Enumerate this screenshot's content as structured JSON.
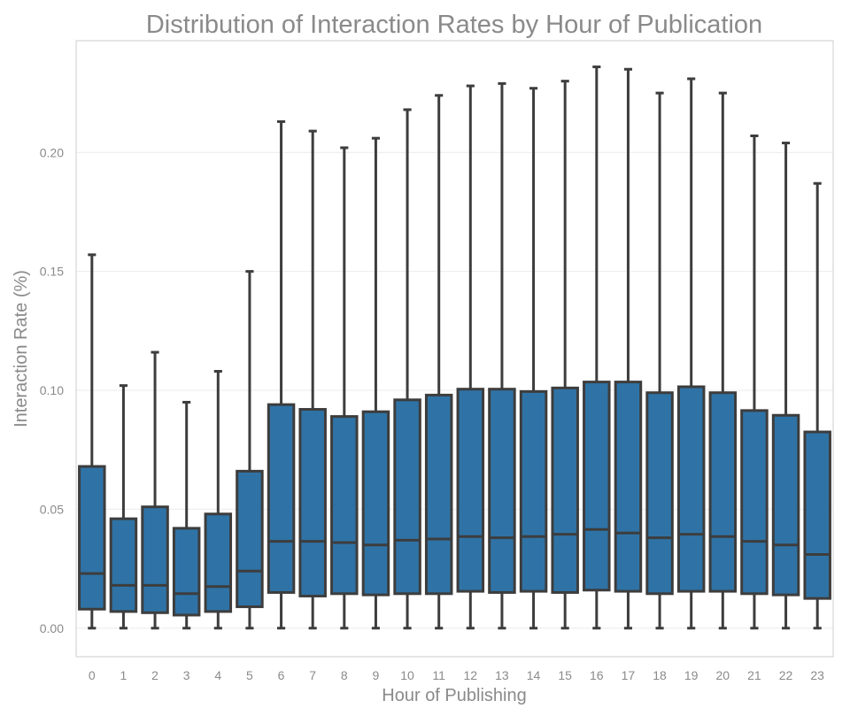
{
  "chart_data": {
    "type": "box",
    "title": "Distribution of Interaction Rates by Hour of Publication",
    "xlabel": "Hour of Publishing",
    "ylabel": "Interaction Rate (%)",
    "categories": [
      "0",
      "1",
      "2",
      "3",
      "4",
      "5",
      "6",
      "7",
      "8",
      "9",
      "10",
      "11",
      "12",
      "13",
      "14",
      "15",
      "16",
      "17",
      "18",
      "19",
      "20",
      "21",
      "22",
      "23"
    ],
    "ylim": [
      -0.012,
      0.247
    ],
    "yticks": [
      0.0,
      0.05,
      0.1,
      0.15,
      0.2
    ],
    "ytick_labels": [
      "0.00",
      "0.05",
      "0.10",
      "0.15",
      "0.20"
    ],
    "grid": true,
    "box_color": "#2f73a6",
    "line_color": "#3d3d3d",
    "boxes": [
      {
        "min": 0,
        "q1": 0.008,
        "median": 0.023,
        "q3": 0.068,
        "max": 0.157
      },
      {
        "min": 0,
        "q1": 0.007,
        "median": 0.018,
        "q3": 0.046,
        "max": 0.102
      },
      {
        "min": 0,
        "q1": 0.0065,
        "median": 0.018,
        "q3": 0.051,
        "max": 0.116
      },
      {
        "min": 0,
        "q1": 0.0055,
        "median": 0.0145,
        "q3": 0.042,
        "max": 0.095
      },
      {
        "min": 0,
        "q1": 0.007,
        "median": 0.0175,
        "q3": 0.048,
        "max": 0.108
      },
      {
        "min": 0,
        "q1": 0.009,
        "median": 0.024,
        "q3": 0.066,
        "max": 0.15
      },
      {
        "min": 0,
        "q1": 0.015,
        "median": 0.0365,
        "q3": 0.094,
        "max": 0.213
      },
      {
        "min": 0,
        "q1": 0.0135,
        "median": 0.0365,
        "q3": 0.092,
        "max": 0.209
      },
      {
        "min": 0,
        "q1": 0.0145,
        "median": 0.036,
        "q3": 0.089,
        "max": 0.202
      },
      {
        "min": 0,
        "q1": 0.014,
        "median": 0.035,
        "q3": 0.091,
        "max": 0.206
      },
      {
        "min": 0,
        "q1": 0.0145,
        "median": 0.037,
        "q3": 0.096,
        "max": 0.218
      },
      {
        "min": 0,
        "q1": 0.0145,
        "median": 0.0375,
        "q3": 0.098,
        "max": 0.224
      },
      {
        "min": 0,
        "q1": 0.0155,
        "median": 0.0385,
        "q3": 0.1005,
        "max": 0.228
      },
      {
        "min": 0,
        "q1": 0.015,
        "median": 0.038,
        "q3": 0.1005,
        "max": 0.229
      },
      {
        "min": 0,
        "q1": 0.0155,
        "median": 0.0385,
        "q3": 0.0995,
        "max": 0.227
      },
      {
        "min": 0,
        "q1": 0.015,
        "median": 0.0395,
        "q3": 0.101,
        "max": 0.23
      },
      {
        "min": 0,
        "q1": 0.016,
        "median": 0.0415,
        "q3": 0.1035,
        "max": 0.236
      },
      {
        "min": 0,
        "q1": 0.0155,
        "median": 0.04,
        "q3": 0.1035,
        "max": 0.235
      },
      {
        "min": 0,
        "q1": 0.0145,
        "median": 0.038,
        "q3": 0.099,
        "max": 0.225
      },
      {
        "min": 0,
        "q1": 0.0155,
        "median": 0.0395,
        "q3": 0.1015,
        "max": 0.231
      },
      {
        "min": 0,
        "q1": 0.0155,
        "median": 0.0385,
        "q3": 0.099,
        "max": 0.225
      },
      {
        "min": 0,
        "q1": 0.0145,
        "median": 0.0365,
        "q3": 0.0915,
        "max": 0.207
      },
      {
        "min": 0,
        "q1": 0.014,
        "median": 0.035,
        "q3": 0.0895,
        "max": 0.204
      },
      {
        "min": 0,
        "q1": 0.0125,
        "median": 0.031,
        "q3": 0.0825,
        "max": 0.187
      }
    ]
  }
}
